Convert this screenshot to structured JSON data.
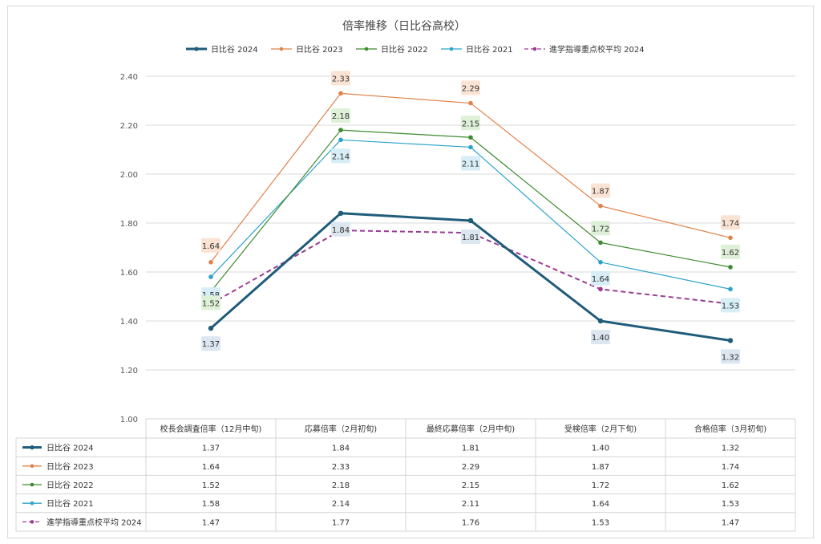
{
  "chart_data": {
    "type": "line",
    "title": "倍率推移（日比谷高校）",
    "xlabel": "",
    "ylabel": "",
    "ylim": [
      1.0,
      2.4
    ],
    "yticks": [
      "1.00",
      "1.20",
      "1.40",
      "1.60",
      "1.80",
      "2.00",
      "2.20",
      "2.40"
    ],
    "grid": true,
    "legend_position": "top",
    "categories": [
      "校長会調査倍率（12月中旬)",
      "応募倍率（2月初旬)",
      "最終応募倍率（2月中旬)",
      "受検倍率（2月下旬)",
      "合格倍率（3月初旬)"
    ],
    "series": [
      {
        "name": "日比谷 2024",
        "color": "#1f5c7a",
        "dashed": false,
        "bold": true,
        "label_bg": "#dce6f1",
        "values": [
          1.37,
          1.84,
          1.81,
          1.4,
          1.32
        ],
        "values_text": [
          "1.37",
          "1.84",
          "1.81",
          "1.40",
          "1.32"
        ]
      },
      {
        "name": "日比谷 2023",
        "color": "#e0824a",
        "dashed": false,
        "bold": false,
        "label_bg": "#fbe3d4",
        "values": [
          1.64,
          2.33,
          2.29,
          1.87,
          1.74
        ],
        "values_text": [
          "1.64",
          "2.33",
          "2.29",
          "1.87",
          "1.74"
        ]
      },
      {
        "name": "日比谷 2022",
        "color": "#3e8b2f",
        "dashed": false,
        "bold": false,
        "label_bg": "#dff0d8",
        "values": [
          1.52,
          2.18,
          2.15,
          1.72,
          1.62
        ],
        "values_text": [
          "1.52",
          "2.18",
          "2.15",
          "1.72",
          "1.62"
        ]
      },
      {
        "name": "日比谷 2021",
        "color": "#2ea3c9",
        "dashed": false,
        "bold": false,
        "label_bg": "#d7eef7",
        "values": [
          1.58,
          2.14,
          2.11,
          1.64,
          1.53
        ],
        "values_text": [
          "1.58",
          "2.14",
          "2.11",
          "1.64",
          "1.53"
        ]
      },
      {
        "name": "進学指導重点校平均 2024",
        "color": "#9a3b93",
        "dashed": true,
        "bold": false,
        "label_bg": null,
        "values": [
          1.47,
          1.77,
          1.76,
          1.53,
          1.47
        ],
        "values_text": [
          "1.47",
          "1.77",
          "1.76",
          "1.53",
          "1.47"
        ]
      }
    ]
  }
}
